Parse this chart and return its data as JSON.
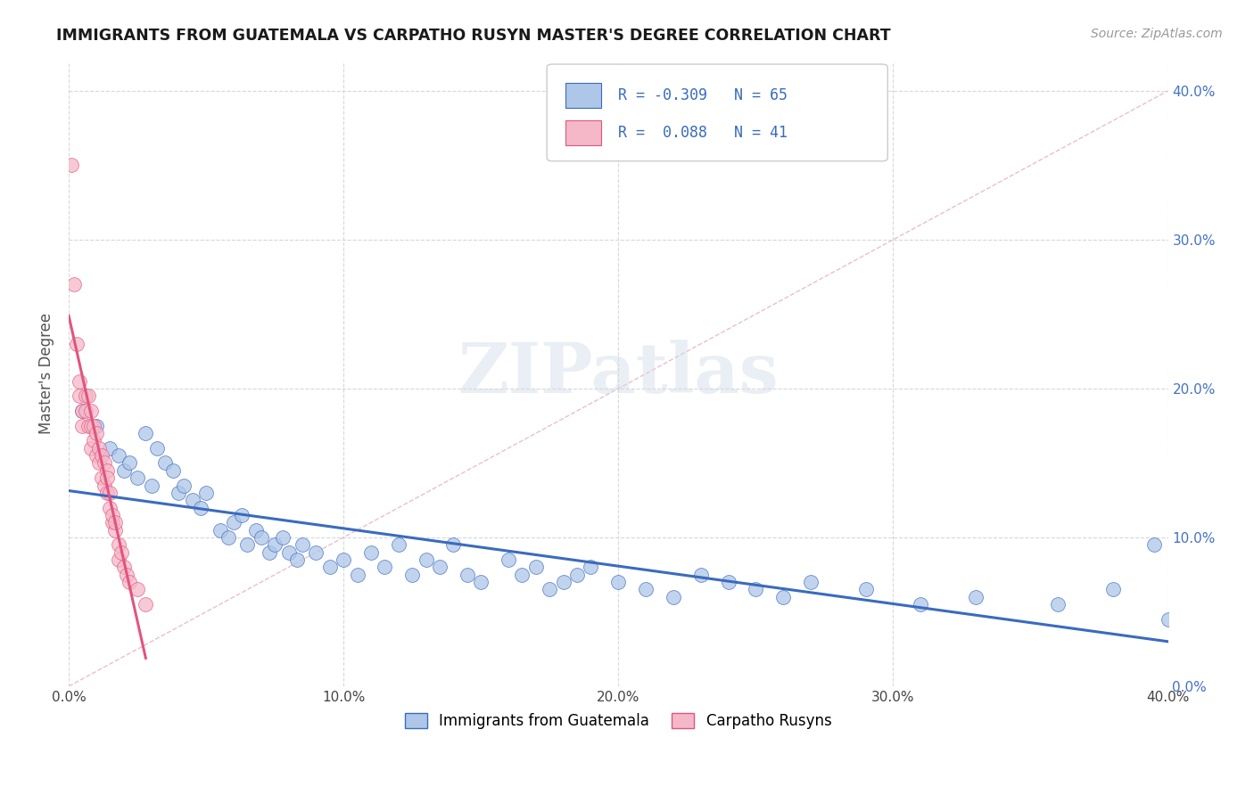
{
  "title": "IMMIGRANTS FROM GUATEMALA VS CARPATHO RUSYN MASTER'S DEGREE CORRELATION CHART",
  "source_text": "Source: ZipAtlas.com",
  "ylabel": "Master's Degree",
  "xlim": [
    0.0,
    0.4
  ],
  "ylim": [
    0.0,
    0.42
  ],
  "x_ticks": [
    0.0,
    0.1,
    0.2,
    0.3,
    0.4
  ],
  "x_tick_labels": [
    "0.0%",
    "10.0%",
    "20.0%",
    "30.0%",
    "40.0%"
  ],
  "y_ticks": [
    0.0,
    0.1,
    0.2,
    0.3,
    0.4
  ],
  "blue_color": "#aec6e8",
  "pink_color": "#f5b8c8",
  "blue_line_color": "#3a6bbf",
  "pink_line_color": "#e05580",
  "diagonal_line_color": "#e8b8c8",
  "legend_R1": "-0.309",
  "legend_N1": "65",
  "legend_R2": "0.088",
  "legend_N2": "41",
  "legend_label1": "Immigrants from Guatemala",
  "legend_label2": "Carpatho Rusyns",
  "blue_scatter_x": [
    0.005,
    0.01,
    0.015,
    0.018,
    0.02,
    0.022,
    0.025,
    0.028,
    0.03,
    0.032,
    0.035,
    0.038,
    0.04,
    0.042,
    0.045,
    0.048,
    0.05,
    0.055,
    0.058,
    0.06,
    0.063,
    0.065,
    0.068,
    0.07,
    0.073,
    0.075,
    0.078,
    0.08,
    0.083,
    0.085,
    0.09,
    0.095,
    0.1,
    0.105,
    0.11,
    0.115,
    0.12,
    0.125,
    0.13,
    0.135,
    0.14,
    0.145,
    0.15,
    0.16,
    0.165,
    0.17,
    0.175,
    0.18,
    0.185,
    0.19,
    0.2,
    0.21,
    0.22,
    0.23,
    0.24,
    0.25,
    0.26,
    0.27,
    0.29,
    0.31,
    0.33,
    0.36,
    0.38,
    0.395,
    0.4
  ],
  "blue_scatter_y": [
    0.185,
    0.175,
    0.16,
    0.155,
    0.145,
    0.15,
    0.14,
    0.17,
    0.135,
    0.16,
    0.15,
    0.145,
    0.13,
    0.135,
    0.125,
    0.12,
    0.13,
    0.105,
    0.1,
    0.11,
    0.115,
    0.095,
    0.105,
    0.1,
    0.09,
    0.095,
    0.1,
    0.09,
    0.085,
    0.095,
    0.09,
    0.08,
    0.085,
    0.075,
    0.09,
    0.08,
    0.095,
    0.075,
    0.085,
    0.08,
    0.095,
    0.075,
    0.07,
    0.085,
    0.075,
    0.08,
    0.065,
    0.07,
    0.075,
    0.08,
    0.07,
    0.065,
    0.06,
    0.075,
    0.07,
    0.065,
    0.06,
    0.07,
    0.065,
    0.055,
    0.06,
    0.055,
    0.065,
    0.095,
    0.045
  ],
  "pink_scatter_x": [
    0.001,
    0.002,
    0.003,
    0.004,
    0.004,
    0.005,
    0.005,
    0.006,
    0.006,
    0.007,
    0.007,
    0.008,
    0.008,
    0.008,
    0.009,
    0.009,
    0.01,
    0.01,
    0.011,
    0.011,
    0.012,
    0.012,
    0.013,
    0.013,
    0.014,
    0.014,
    0.014,
    0.015,
    0.015,
    0.016,
    0.016,
    0.017,
    0.017,
    0.018,
    0.018,
    0.019,
    0.02,
    0.021,
    0.022,
    0.025,
    0.028
  ],
  "pink_scatter_y": [
    0.35,
    0.27,
    0.23,
    0.195,
    0.205,
    0.185,
    0.175,
    0.195,
    0.185,
    0.195,
    0.175,
    0.185,
    0.175,
    0.16,
    0.175,
    0.165,
    0.17,
    0.155,
    0.16,
    0.15,
    0.155,
    0.14,
    0.15,
    0.135,
    0.145,
    0.13,
    0.14,
    0.12,
    0.13,
    0.11,
    0.115,
    0.105,
    0.11,
    0.095,
    0.085,
    0.09,
    0.08,
    0.075,
    0.07,
    0.065,
    0.055
  ],
  "watermark": "ZIPatlas",
  "background_color": "#ffffff",
  "grid_color": "#d8d8d8"
}
